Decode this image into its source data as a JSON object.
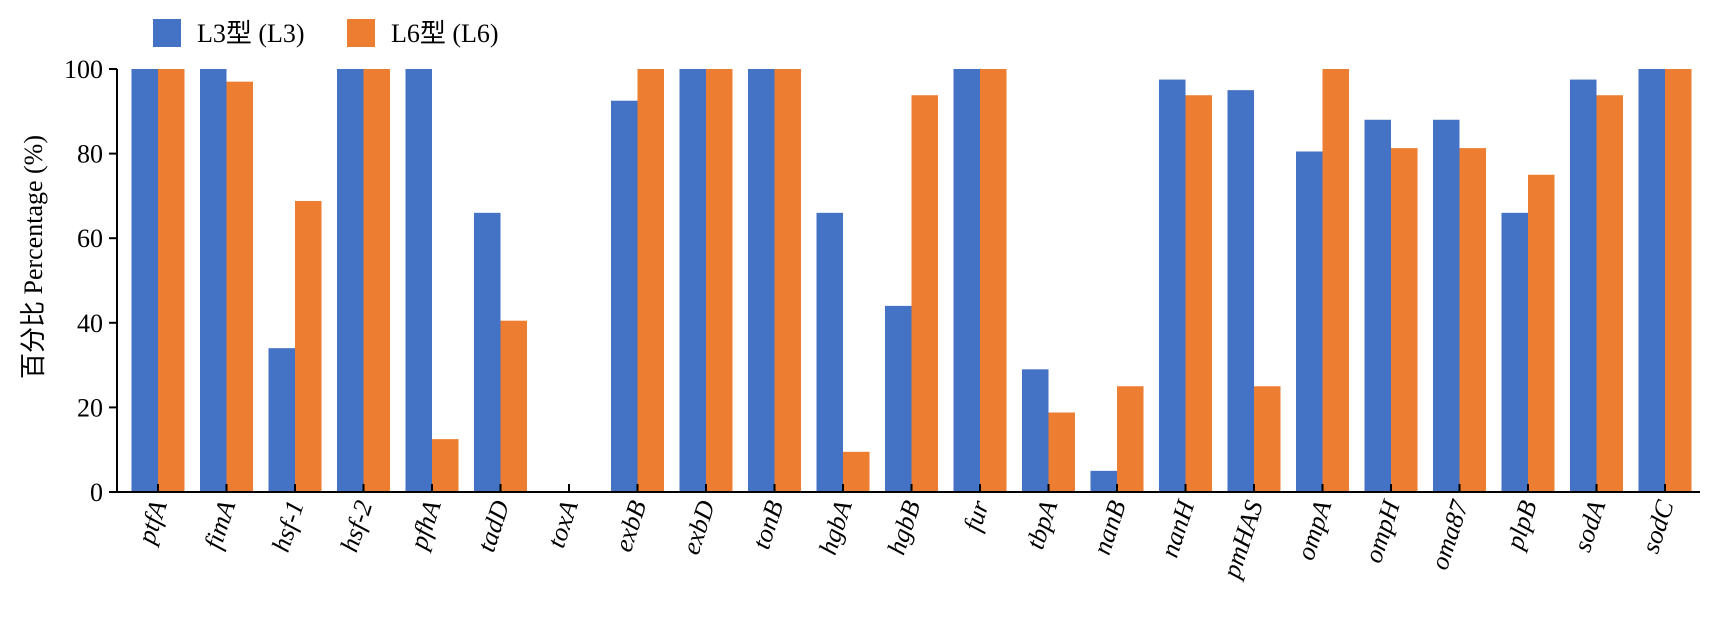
{
  "chart_data": {
    "type": "bar",
    "title": "",
    "xlabel": "",
    "ylabel": "百分比 Percentage (%)",
    "ylim": [
      0,
      100
    ],
    "yticks": [
      0,
      20,
      40,
      60,
      80,
      100
    ],
    "grid": false,
    "legend_position": "top-left",
    "categories": [
      "ptfA",
      "fimA",
      "hsf-1",
      "hsf-2",
      "pfhA",
      "tadD",
      "toxA",
      "exbB",
      "exbD",
      "tonB",
      "hgbA",
      "hgbB",
      "fur",
      "tbpA",
      "nanB",
      "nanH",
      "pmHAS",
      "ompA",
      "ompH",
      "oma87",
      "plpB",
      "sodA",
      "sodC"
    ],
    "series": [
      {
        "name": "L3型 (L3)",
        "color": "#4472C4",
        "values": [
          100,
          100,
          34,
          100,
          100,
          66,
          0,
          92.5,
          100,
          100,
          66,
          44,
          100,
          29,
          5,
          97.5,
          95,
          80.5,
          88,
          88,
          66,
          97.5,
          100
        ]
      },
      {
        "name": "L6型 (L6)",
        "color": "#ED7D31",
        "values": [
          100,
          97,
          68.8,
          100,
          12.5,
          40.5,
          0,
          100,
          100,
          100,
          9.5,
          93.8,
          100,
          18.8,
          25,
          93.8,
          25,
          100,
          81.3,
          81.3,
          75,
          93.8,
          100
        ]
      }
    ]
  }
}
